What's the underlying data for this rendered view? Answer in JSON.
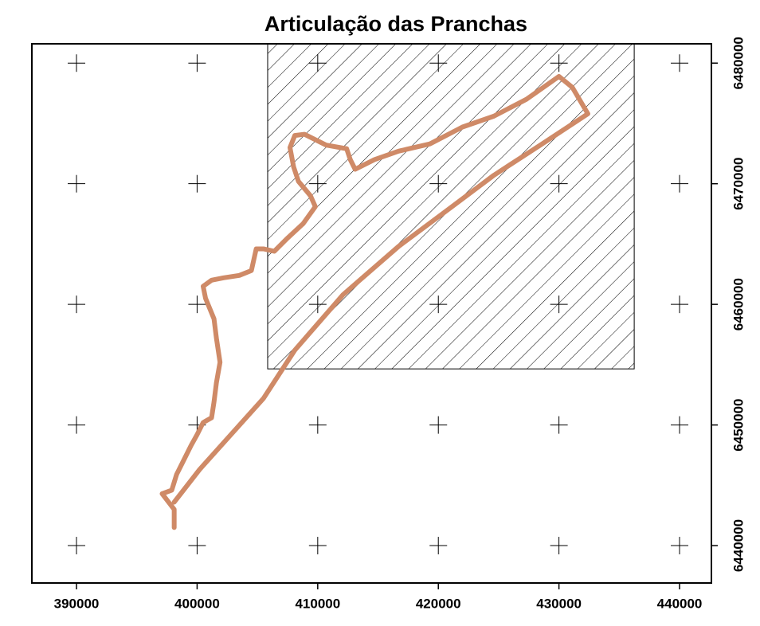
{
  "chart_data": {
    "type": "map",
    "title": "Articulação das Pranchas",
    "xlim": [
      386300,
      442640
    ],
    "ylim": [
      6436900,
      6481600
    ],
    "xticks": [
      390000,
      400000,
      410000,
      420000,
      430000,
      440000
    ],
    "yticks": [
      6440000,
      6450000,
      6460000,
      6470000,
      6480000
    ],
    "grid": "crosses",
    "rect": {
      "xlim": [
        405850,
        436240
      ],
      "ylim": [
        6454650,
        6481600
      ],
      "hatch": true
    },
    "series": [
      {
        "color": "#cf8a67",
        "x": [
          398100,
          398100,
          397100,
          397900,
          398300,
          399000,
          399500,
          400000,
          400500,
          401200,
          401400,
          401600,
          401900,
          401600,
          401400,
          400700,
          400500,
          401200,
          402200,
          403500,
          404500,
          404900,
          405500,
          406400,
          407400,
          408800,
          409800,
          409400,
          408400,
          408000,
          407700,
          408100,
          408900,
          410700,
          412400,
          412700,
          413100,
          414700,
          416700,
          419300,
          422000,
          424600,
          427300,
          430000,
          431100,
          432400,
          428600,
          424600,
          420600,
          416700,
          412100,
          408100,
          405500,
          402800,
          400200,
          398100
        ],
        "values": [
          6441500,
          6443000,
          6444300,
          6444600,
          6445900,
          6447300,
          6448300,
          6449200,
          6450200,
          6450600,
          6451900,
          6453500,
          6455200,
          6457200,
          6458800,
          6460500,
          6461500,
          6462000,
          6462200,
          6462400,
          6462800,
          6464600,
          6464600,
          6464400,
          6465400,
          6466700,
          6468100,
          6469000,
          6470200,
          6471400,
          6473000,
          6474000,
          6474100,
          6473200,
          6472900,
          6472000,
          6471200,
          6472000,
          6472700,
          6473300,
          6474700,
          6475600,
          6477000,
          6478900,
          6478000,
          6475800,
          6473300,
          6470700,
          6467700,
          6464800,
          6460800,
          6456200,
          6452200,
          6449200,
          6446300,
          6443600
        ]
      }
    ]
  }
}
